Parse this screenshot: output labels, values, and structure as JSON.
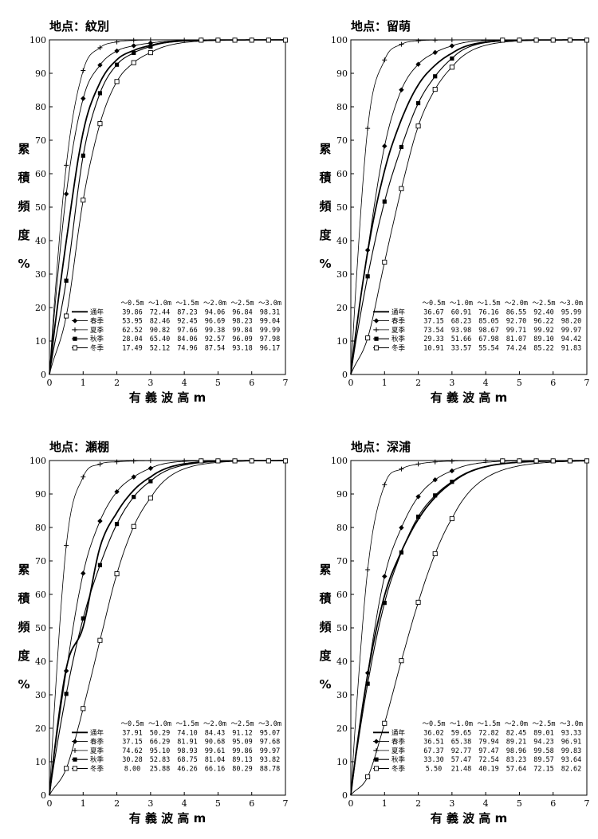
{
  "chart_data": [
    {
      "type": "line",
      "title": "地点：紋別",
      "xlabel": "有 義 波 高 m",
      "ylabel": "累積頻度%",
      "xlim": [
        0,
        7
      ],
      "ylim": [
        0,
        100
      ],
      "xticks": [
        0,
        1,
        2,
        3,
        4,
        5,
        6,
        7
      ],
      "yticks": [
        0,
        10,
        20,
        30,
        40,
        50,
        60,
        70,
        80,
        90,
        100
      ],
      "x": [
        0.5,
        1.0,
        1.5,
        2.0,
        2.5,
        3.0
      ],
      "table_header": [
        "～0.5m",
        "～1.0m",
        "～1.5m",
        "～2.0m",
        "～2.5m",
        "～3.0m"
      ],
      "legend_position": "bottom-right",
      "series": [
        {
          "name": "通年",
          "marker": "none",
          "values": [
            39.86,
            72.44,
            87.23,
            94.06,
            96.84,
            98.31
          ]
        },
        {
          "name": "春季",
          "marker": "diamond",
          "values": [
            53.95,
            82.46,
            92.45,
            96.69,
            98.23,
            99.04
          ]
        },
        {
          "name": "夏季",
          "marker": "plus",
          "values": [
            62.52,
            90.82,
            97.66,
            99.38,
            99.84,
            99.99
          ]
        },
        {
          "name": "秋季",
          "marker": "square",
          "values": [
            28.04,
            65.4,
            84.06,
            92.57,
            96.09,
            97.98
          ]
        },
        {
          "name": "冬季",
          "marker": "open-square",
          "values": [
            17.49,
            52.12,
            74.96,
            87.54,
            93.18,
            96.17
          ]
        }
      ]
    },
    {
      "type": "line",
      "title": "地点：留萌",
      "xlabel": "有 義 波 高 m",
      "ylabel": "累積頻度%",
      "xlim": [
        0,
        7
      ],
      "ylim": [
        0,
        100
      ],
      "xticks": [
        0,
        1,
        2,
        3,
        4,
        5,
        6,
        7
      ],
      "yticks": [
        0,
        10,
        20,
        30,
        40,
        50,
        60,
        70,
        80,
        90,
        100
      ],
      "x": [
        0.5,
        1.0,
        1.5,
        2.0,
        2.5,
        3.0
      ],
      "table_header": [
        "～0.5m",
        "～1.0m",
        "～1.5m",
        "～2.0m",
        "～2.5m",
        "～3.0m"
      ],
      "legend_position": "bottom-right",
      "series": [
        {
          "name": "通年",
          "marker": "none",
          "values": [
            36.67,
            60.91,
            76.16,
            86.55,
            92.4,
            95.99
          ]
        },
        {
          "name": "春季",
          "marker": "diamond",
          "values": [
            37.15,
            68.23,
            85.05,
            92.7,
            96.22,
            98.2
          ]
        },
        {
          "name": "夏季",
          "marker": "plus",
          "values": [
            73.54,
            93.98,
            98.67,
            99.71,
            99.92,
            99.97
          ]
        },
        {
          "name": "秋季",
          "marker": "square",
          "values": [
            29.33,
            51.66,
            67.98,
            81.07,
            89.1,
            94.42
          ]
        },
        {
          "name": "冬季",
          "marker": "open-square",
          "values": [
            10.91,
            33.57,
            55.54,
            74.24,
            85.22,
            91.83
          ]
        }
      ]
    },
    {
      "type": "line",
      "title": "地点：瀬棚",
      "xlabel": "有 義 波 高 m",
      "ylabel": "累積頻度%",
      "xlim": [
        0,
        7
      ],
      "ylim": [
        0,
        100
      ],
      "xticks": [
        0,
        1,
        2,
        3,
        4,
        5,
        6,
        7
      ],
      "yticks": [
        0,
        10,
        20,
        30,
        40,
        50,
        60,
        70,
        80,
        90,
        100
      ],
      "x": [
        0.5,
        1.0,
        1.5,
        2.0,
        2.5,
        3.0
      ],
      "table_header": [
        "～0.5m",
        "～1.0m",
        "～1.5m",
        "～2.0m",
        "～2.5m",
        "～3.0m"
      ],
      "legend_position": "bottom-right",
      "series": [
        {
          "name": "通年",
          "marker": "none",
          "values": [
            37.91,
            50.29,
            74.1,
            84.43,
            91.12,
            95.07
          ]
        },
        {
          "name": "春季",
          "marker": "diamond",
          "values": [
            37.15,
            66.29,
            81.91,
            90.68,
            95.09,
            97.68
          ]
        },
        {
          "name": "夏季",
          "marker": "plus",
          "values": [
            74.62,
            95.1,
            98.93,
            99.61,
            99.86,
            99.97
          ]
        },
        {
          "name": "秋季",
          "marker": "square",
          "values": [
            30.28,
            52.83,
            68.75,
            81.04,
            89.13,
            93.82
          ]
        },
        {
          "name": "冬季",
          "marker": "open-square",
          "values": [
            8.0,
            25.88,
            46.26,
            66.16,
            80.29,
            88.78
          ]
        }
      ]
    },
    {
      "type": "line",
      "title": "地点：深浦",
      "xlabel": "有 義 波 高 m",
      "ylabel": "累積頻度%",
      "xlim": [
        0,
        7
      ],
      "ylim": [
        0,
        100
      ],
      "xticks": [
        0,
        1,
        2,
        3,
        4,
        5,
        6,
        7
      ],
      "yticks": [
        0,
        10,
        20,
        30,
        40,
        50,
        60,
        70,
        80,
        90,
        100
      ],
      "x": [
        0.5,
        1.0,
        1.5,
        2.0,
        2.5,
        3.0
      ],
      "table_header": [
        "～0.5m",
        "～1.0m",
        "～1.5m",
        "～2.0m",
        "～2.5m",
        "～3.0m"
      ],
      "legend_position": "bottom-right",
      "series": [
        {
          "name": "通年",
          "marker": "none",
          "values": [
            36.02,
            59.65,
            72.82,
            82.45,
            89.01,
            93.33
          ]
        },
        {
          "name": "春季",
          "marker": "diamond",
          "values": [
            36.51,
            65.38,
            79.94,
            89.21,
            94.23,
            96.91
          ]
        },
        {
          "name": "夏季",
          "marker": "plus",
          "values": [
            67.37,
            92.77,
            97.47,
            98.96,
            99.58,
            99.83
          ]
        },
        {
          "name": "秋季",
          "marker": "square",
          "values": [
            33.3,
            57.47,
            72.54,
            83.23,
            89.57,
            93.64
          ]
        },
        {
          "name": "冬季",
          "marker": "open-square",
          "values": [
            5.5,
            21.48,
            40.19,
            57.64,
            72.15,
            82.62
          ]
        }
      ]
    }
  ]
}
